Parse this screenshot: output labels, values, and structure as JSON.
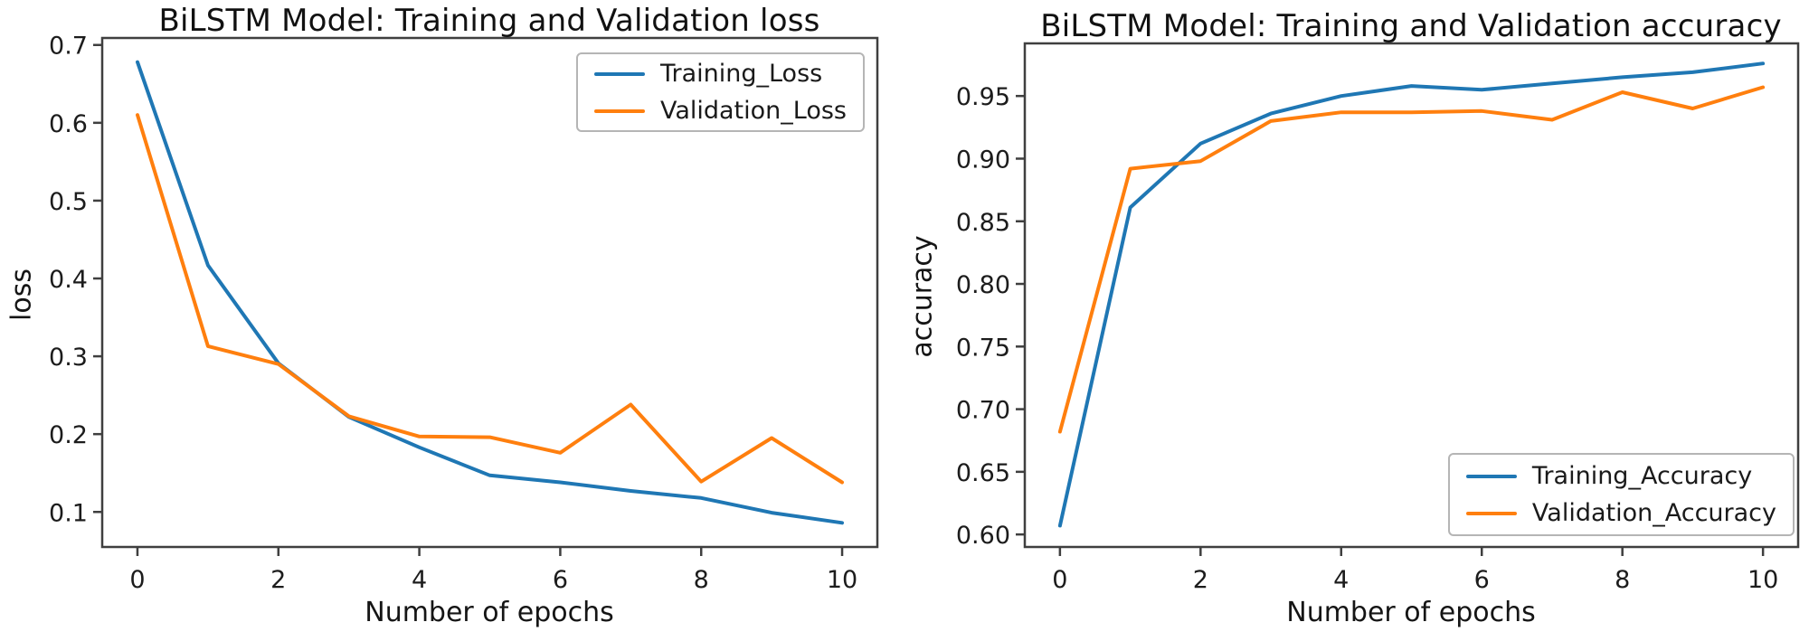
{
  "figure": {
    "background": "#ffffff",
    "spine_color": "#3f3f3f",
    "tick_label_color": "#1c1c1c"
  },
  "chart_data": [
    {
      "type": "line",
      "title": "BiLSTM Model: Training and Validation loss",
      "xlabel": "Number of epochs",
      "ylabel": "loss",
      "x": [
        0,
        1,
        2,
        3,
        4,
        5,
        6,
        7,
        8,
        9,
        10
      ],
      "x_ticks": [
        0,
        2,
        4,
        6,
        8,
        10
      ],
      "y_ticks": [
        0.1,
        0.2,
        0.3,
        0.4,
        0.5,
        0.6,
        0.7
      ],
      "y_tick_labels": [
        "0.1",
        "0.2",
        "0.3",
        "0.4",
        "0.5",
        "0.6",
        "0.7"
      ],
      "xlim": [
        -0.5,
        10.5
      ],
      "ylim": [
        0.055,
        0.709
      ],
      "grid": false,
      "legend_position": "top-right",
      "series": [
        {
          "name": "Training_Loss",
          "color": "#1f77b4",
          "values": [
            0.678,
            0.417,
            0.291,
            0.222,
            0.183,
            0.147,
            0.138,
            0.127,
            0.118,
            0.099,
            0.086
          ]
        },
        {
          "name": "Validation_Loss",
          "color": "#ff7f0e",
          "values": [
            0.61,
            0.313,
            0.29,
            0.223,
            0.197,
            0.196,
            0.176,
            0.238,
            0.139,
            0.195,
            0.138
          ]
        }
      ]
    },
    {
      "type": "line",
      "title": "BiLSTM Model: Training and Validation accuracy",
      "xlabel": "Number of epochs",
      "ylabel": "accuracy",
      "x": [
        0,
        1,
        2,
        3,
        4,
        5,
        6,
        7,
        8,
        9,
        10
      ],
      "x_ticks": [
        0,
        2,
        4,
        6,
        8,
        10
      ],
      "y_ticks": [
        0.6,
        0.65,
        0.7,
        0.75,
        0.8,
        0.85,
        0.9,
        0.95
      ],
      "y_tick_labels": [
        "0.60",
        "0.65",
        "0.70",
        "0.75",
        "0.80",
        "0.85",
        "0.90",
        "0.95"
      ],
      "xlim": [
        -0.5,
        10.5
      ],
      "ylim": [
        0.59,
        0.992
      ],
      "grid": false,
      "legend_position": "bottom-right",
      "series": [
        {
          "name": "Training_Accuracy",
          "color": "#1f77b4",
          "values": [
            0.607,
            0.861,
            0.912,
            0.936,
            0.95,
            0.958,
            0.955,
            0.96,
            0.965,
            0.969,
            0.976
          ]
        },
        {
          "name": "Validation_Accuracy",
          "color": "#ff7f0e",
          "values": [
            0.682,
            0.892,
            0.898,
            0.93,
            0.937,
            0.937,
            0.938,
            0.931,
            0.953,
            0.94,
            0.957
          ]
        }
      ]
    }
  ]
}
